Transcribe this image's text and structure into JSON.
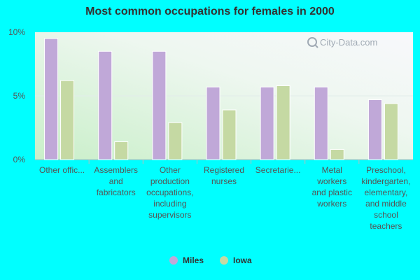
{
  "chart_data": {
    "type": "bar",
    "title": "Most common occupations for females in 2000",
    "categories": [
      [
        "Other offic..."
      ],
      [
        "Assemblers",
        "and",
        "fabricators"
      ],
      [
        "Other",
        "production",
        "occupations,",
        "including",
        "supervisors"
      ],
      [
        "Registered",
        "nurses"
      ],
      [
        "Secretarie..."
      ],
      [
        "Metal",
        "workers",
        "and plastic",
        "workers"
      ],
      [
        "Preschool,",
        "kindergarten,",
        "elementary,",
        "and middle",
        "school",
        "teachers"
      ]
    ],
    "series": [
      {
        "name": "Miles",
        "color": "#c0a8d8",
        "values": [
          9.5,
          8.5,
          8.5,
          5.7,
          5.7,
          5.7,
          4.7
        ]
      },
      {
        "name": "Iowa",
        "color": "#c5d9a3",
        "values": [
          6.2,
          1.4,
          2.9,
          3.9,
          5.8,
          0.8,
          4.4
        ]
      }
    ],
    "yticks": [
      "0%",
      "5%",
      "10%"
    ],
    "ylim": [
      0,
      10
    ],
    "legend_position": "bottom-center",
    "watermark": "City-Data.com",
    "grid": true
  }
}
